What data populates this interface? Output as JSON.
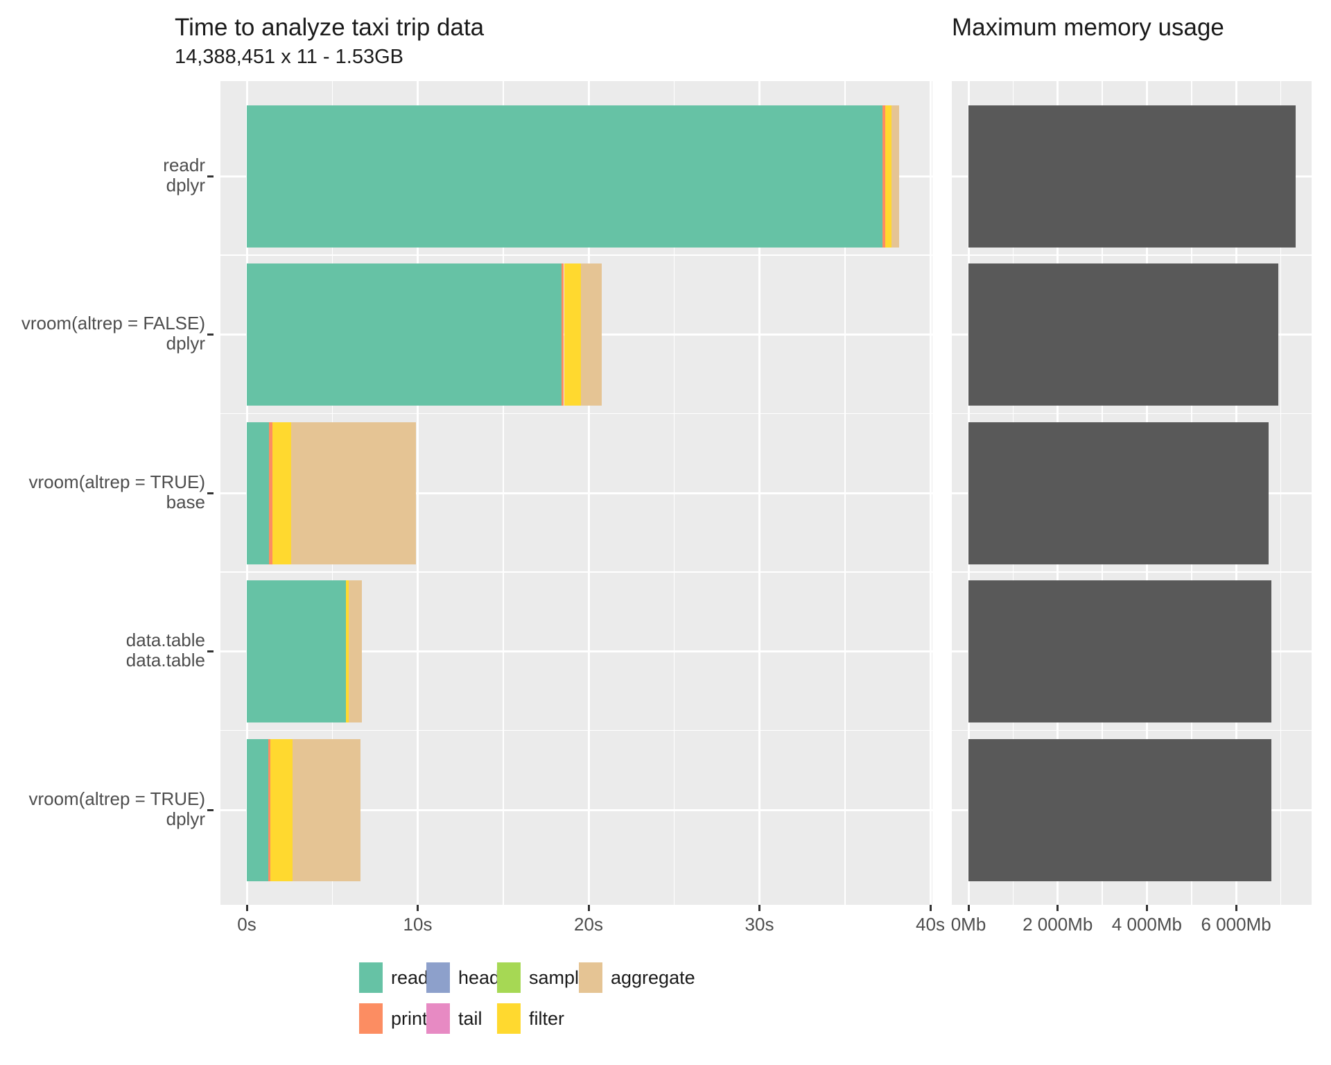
{
  "chart_data": [
    {
      "type": "bar",
      "orientation": "horizontal",
      "stacked": true,
      "title": "Time to analyze taxi trip data",
      "subtitle": "14,388,451 x 11 - 1.53GB",
      "xlabel": "",
      "ylabel": "",
      "xlim_seconds": [
        0,
        41.6
      ],
      "grid": "on",
      "categories": [
        "readr\ndplyr",
        "vroom(altrep = FALSE)\ndplyr",
        "vroom(altrep = TRUE)\nbase",
        "data.table\ndata.table",
        "vroom(altrep = TRUE)\ndplyr"
      ],
      "series": [
        {
          "name": "read",
          "color": "#66C2A5",
          "values": [
            37.2,
            18.4,
            1.3,
            5.8,
            1.25
          ]
        },
        {
          "name": "print",
          "color": "#FC8D62",
          "values": [
            0.16,
            0.16,
            0.2,
            0,
            0.12
          ]
        },
        {
          "name": "head",
          "color": "#8DA0CB",
          "values": [
            0,
            0,
            0,
            0,
            0
          ]
        },
        {
          "name": "tail",
          "color": "#E78AC3",
          "values": [
            0,
            0,
            0,
            0,
            0
          ]
        },
        {
          "name": "sample",
          "color": "#A6D854",
          "values": [
            0,
            0,
            0,
            0,
            0
          ]
        },
        {
          "name": "filter",
          "color": "#FFD92F",
          "values": [
            0.37,
            1.0,
            1.1,
            0.16,
            1.3
          ]
        },
        {
          "name": "aggregate",
          "color": "#E5C494",
          "values": [
            0.45,
            1.2,
            7.3,
            0.77,
            4.0
          ]
        }
      ],
      "totals_seconds": [
        38.2,
        20.8,
        9.9,
        6.7,
        6.7
      ],
      "x_ticks": [
        {
          "v": 0,
          "label": "0s"
        },
        {
          "v": 10,
          "label": "10s"
        },
        {
          "v": 20,
          "label": "20s"
        },
        {
          "v": 30,
          "label": "30s"
        },
        {
          "v": 40,
          "label": "40s"
        }
      ],
      "x_minor": [
        5,
        15,
        25,
        35
      ]
    },
    {
      "type": "bar",
      "orientation": "horizontal",
      "stacked": false,
      "title": "Maximum memory usage",
      "xlabel": "",
      "ylabel": "",
      "xlim_mb": [
        0,
        7700
      ],
      "grid": "on",
      "categories": [
        "readr\ndplyr",
        "vroom(altrep = FALSE)\ndplyr",
        "vroom(altrep = TRUE)\nbase",
        "data.table\ndata.table",
        "vroom(altrep = TRUE)\ndplyr"
      ],
      "values_mb": [
        7330,
        6950,
        6730,
        6790,
        6790
      ],
      "bar_color": "#595959",
      "x_ticks": [
        {
          "v": 0,
          "label": "0Mb"
        },
        {
          "v": 2000,
          "label": "2 000Mb"
        },
        {
          "v": 4000,
          "label": "4 000Mb"
        },
        {
          "v": 6000,
          "label": "6 000Mb"
        }
      ],
      "x_minor": [
        1000,
        3000,
        5000,
        7000
      ]
    }
  ],
  "legend": {
    "rows": [
      [
        {
          "label": "read",
          "color": "#66C2A5"
        },
        {
          "label": "head",
          "color": "#8DA0CB"
        },
        {
          "label": "sample",
          "color": "#A6D854"
        },
        {
          "label": "aggregate",
          "color": "#E5C494"
        }
      ],
      [
        {
          "label": "print",
          "color": "#FC8D62"
        },
        {
          "label": "tail",
          "color": "#E78AC3"
        },
        {
          "label": "filter",
          "color": "#FFD92F"
        }
      ]
    ]
  },
  "colors": {
    "panel_background": "#EBEBEB",
    "gridline": "#FFFFFF",
    "axis_text": "#4D4D4D",
    "tick_mark": "#333333",
    "memory_bar": "#595959"
  }
}
